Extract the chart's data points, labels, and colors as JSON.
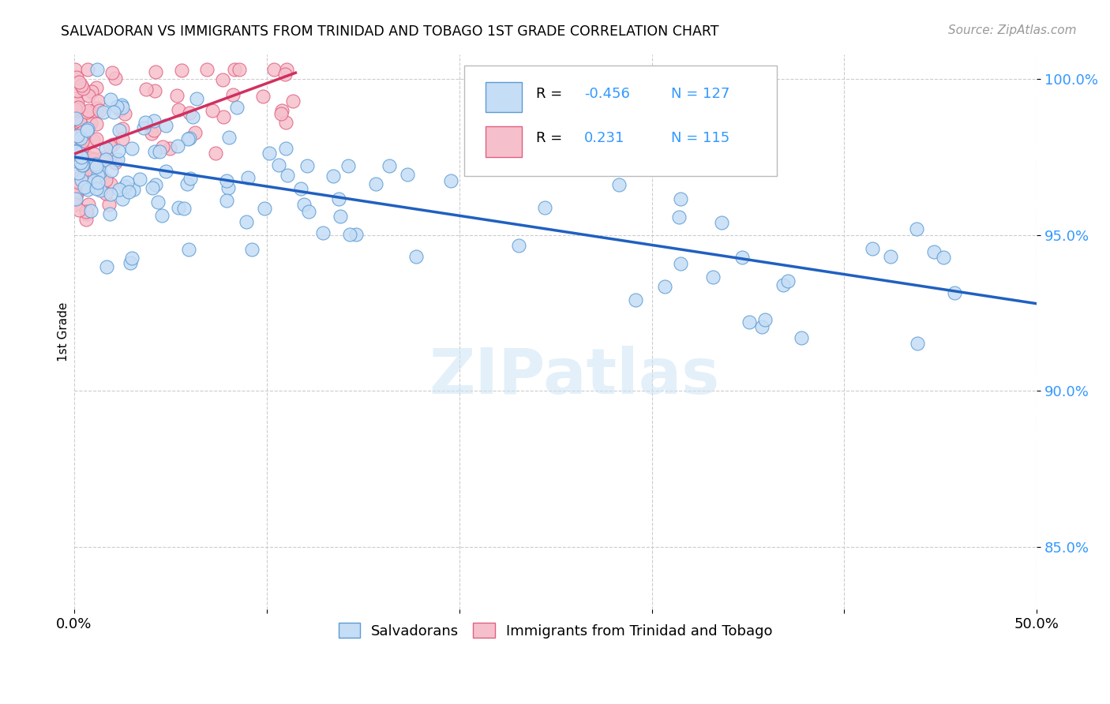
{
  "title": "SALVADORAN VS IMMIGRANTS FROM TRINIDAD AND TOBAGO 1ST GRADE CORRELATION CHART",
  "source": "Source: ZipAtlas.com",
  "ylabel": "1st Grade",
  "xlim": [
    0.0,
    0.5
  ],
  "ylim": [
    0.83,
    1.008
  ],
  "ytick_vals": [
    0.85,
    0.9,
    0.95,
    1.0
  ],
  "ytick_labels": [
    "85.0%",
    "90.0%",
    "95.0%",
    "100.0%"
  ],
  "xtick_vals": [
    0.0,
    0.1,
    0.2,
    0.3,
    0.4,
    0.5
  ],
  "xtick_labels": [
    "0.0%",
    "",
    "",
    "",
    "",
    "50.0%"
  ],
  "blue_R": -0.456,
  "blue_N": 127,
  "pink_R": 0.231,
  "pink_N": 115,
  "blue_fill": "#c5ddf5",
  "pink_fill": "#f5c0cc",
  "blue_edge": "#5b9bd5",
  "pink_edge": "#e06080",
  "blue_line": "#2060c0",
  "pink_line": "#d03060",
  "legend_label_blue": "Salvadorans",
  "legend_label_pink": "Immigrants from Trinidad and Tobago",
  "watermark": "ZIPatlas",
  "blue_line_x0": 0.0,
  "blue_line_x1": 0.5,
  "blue_line_y0": 0.975,
  "blue_line_y1": 0.928,
  "pink_line_x0": 0.0,
  "pink_line_x1": 0.115,
  "pink_line_y0": 0.976,
  "pink_line_y1": 1.002
}
